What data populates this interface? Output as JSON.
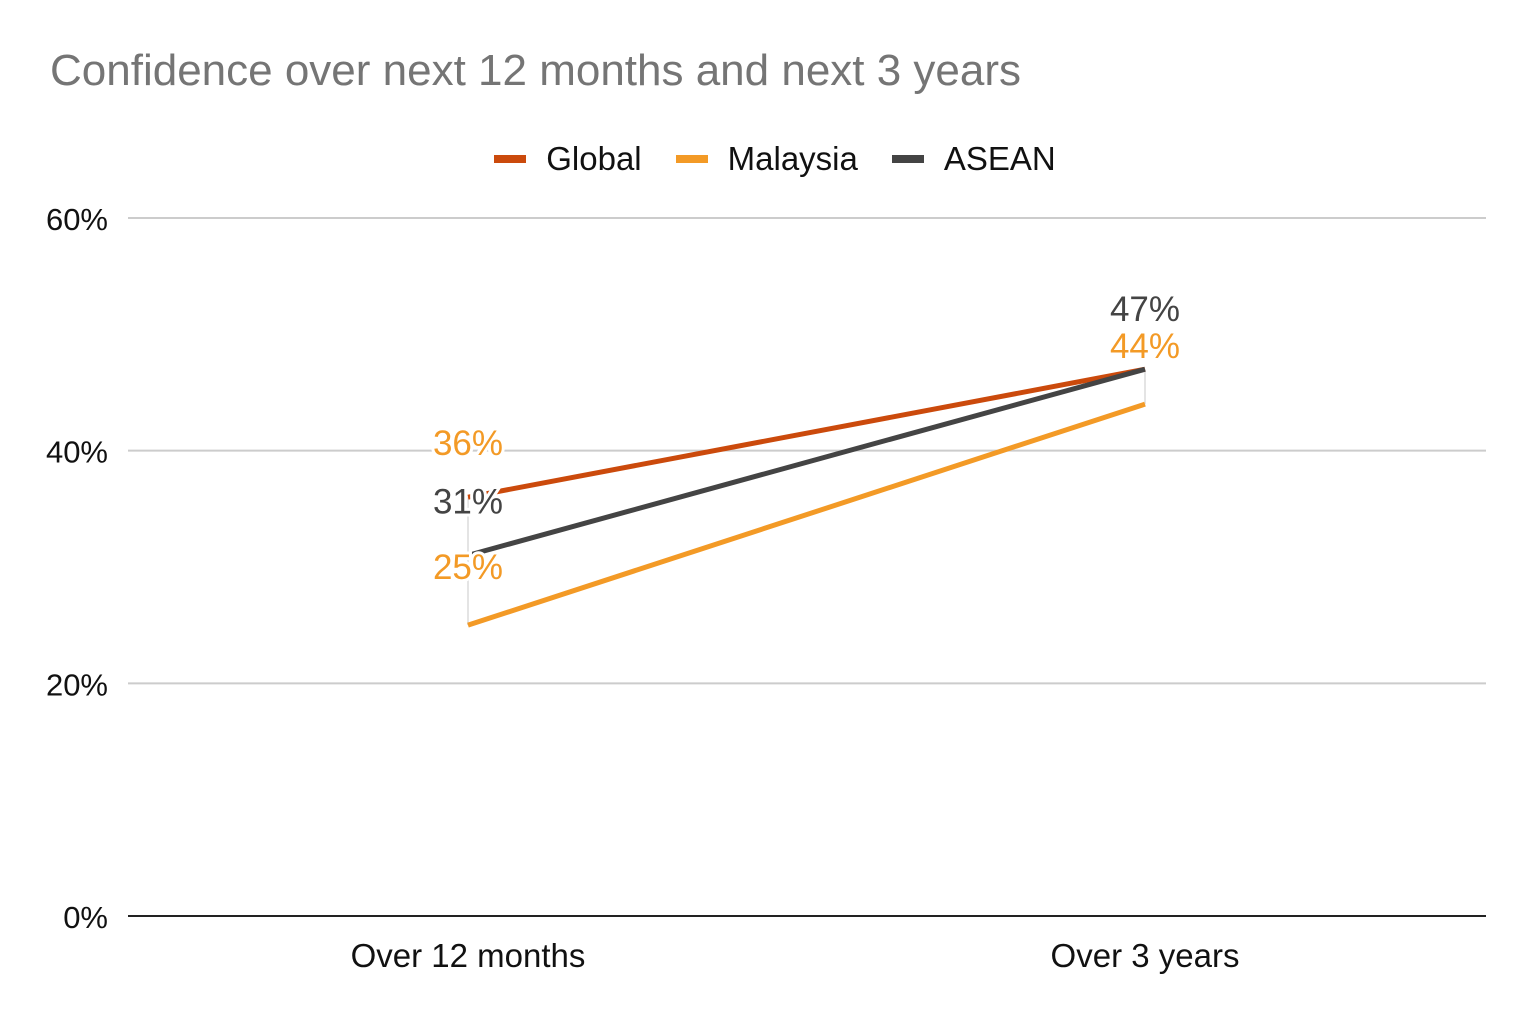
{
  "chart_data": {
    "type": "line",
    "title": "Confidence over next 12 months and next 3 years",
    "categories": [
      "Over 12 months",
      "Over 3 years"
    ],
    "series": [
      {
        "name": "Global",
        "color": "#CB4A0C",
        "values": [
          36,
          47
        ],
        "labels": [
          "",
          ""
        ]
      },
      {
        "name": "Malaysia",
        "color": "#F39A26",
        "values": [
          25,
          44
        ],
        "labels": [
          "25%",
          "44%"
        ]
      },
      {
        "name": "ASEAN",
        "color": "#444444",
        "values": [
          31,
          47
        ],
        "labels": [
          "31%",
          "47%"
        ]
      }
    ],
    "extra_labels": [
      {
        "text": "36%",
        "color": "#F39A26",
        "category_index": 0,
        "value": 36
      }
    ],
    "y_ticks": [
      "0%",
      "20%",
      "40%",
      "60%"
    ],
    "y_tick_values": [
      0,
      20,
      40,
      60
    ],
    "ylim": [
      0,
      60
    ],
    "xlabel": "",
    "ylabel": "",
    "grid": true,
    "legend_position": "top"
  }
}
